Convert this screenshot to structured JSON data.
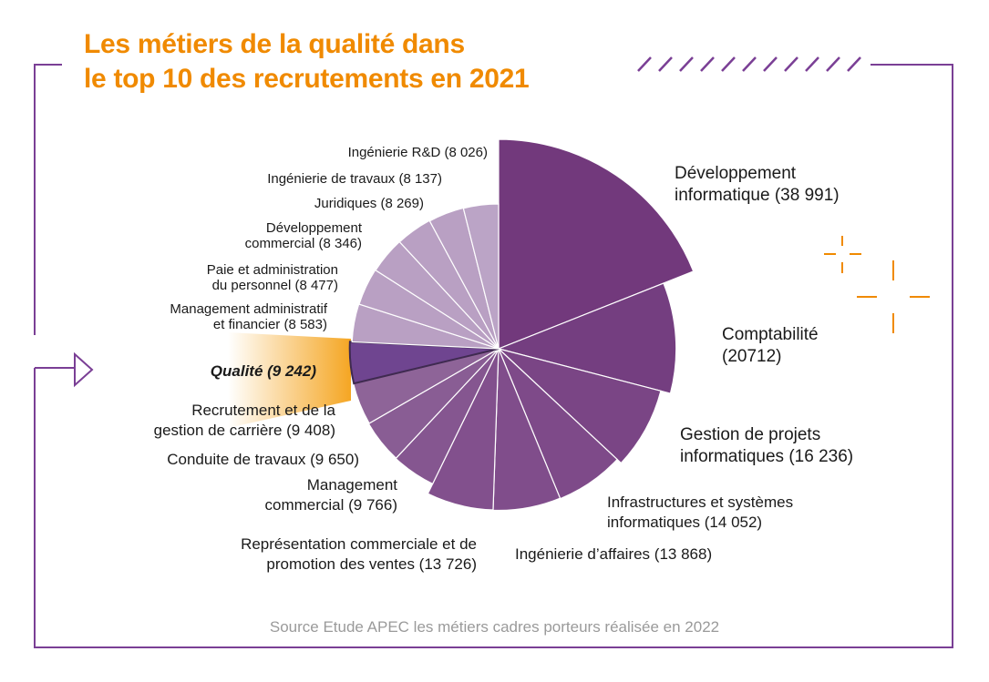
{
  "title_line1": "Les métiers de la qualité dans",
  "title_line2": "le top 10 des recrutements en 2021",
  "source": "Source Etude APEC les métiers cadres porteurs réalisée en 2022",
  "colors": {
    "accent": "#f08a00",
    "frame": "#7a3f95"
  },
  "chart_data": {
    "type": "polar-area",
    "title": "Les métiers de la qualité dans le top 10 des recrutements en 2021",
    "highlight": "Qualité",
    "series": [
      {
        "name": "Développement informatique",
        "value": 38991,
        "label": "Développement informatique (38 991)",
        "color": "#72397c"
      },
      {
        "name": "Comptabilité",
        "value": 20712,
        "label": "Comptabilité (20712)",
        "color": "#743e80"
      },
      {
        "name": "Gestion de projets informatiques",
        "value": 16236,
        "label": "Gestion de projets informatiques (16 236)",
        "color": "#7a4585"
      },
      {
        "name": "Infrastructures et systèmes informatiques",
        "value": 14052,
        "label": "Infrastructures et systèmes informatiques (14 052)",
        "color": "#7e4a89"
      },
      {
        "name": "Ingénierie d'affaires",
        "value": 13868,
        "label": "Ingénierie d’affaires (13 868)",
        "color": "#804d8b"
      },
      {
        "name": "Représentation commerciale et de promotion des ventes",
        "value": 13726,
        "label": "Représentation commerciale et de promotion des ventes (13 726)",
        "color": "#82508d"
      },
      {
        "name": "Management commercial",
        "value": 9766,
        "label": "Management commercial (9 766)",
        "color": "#855690"
      },
      {
        "name": "Conduite de travaux",
        "value": 9650,
        "label": "Conduite de travaux (9 650)",
        "color": "#895d94"
      },
      {
        "name": "Recrutement et de la gestion de carrière",
        "value": 9408,
        "label": "Recrutement et de la gestion de carrière (9 408)",
        "color": "#8e6498"
      },
      {
        "name": "Qualité",
        "value": 9242,
        "label": "Qualité (9 242)",
        "color": "#6f4590"
      },
      {
        "name": "Management administratif et financier",
        "value": 8583,
        "label": "Management administratif et financier (8 583)",
        "color": "#b9a0c3"
      },
      {
        "name": "Paie et administration du personnel",
        "value": 8477,
        "label": "Paie et administration du personnel (8 477)",
        "color": "#b9a0c3"
      },
      {
        "name": "Développement commercial",
        "value": 8346,
        "label": "Développement commercial (8 346)",
        "color": "#b9a0c3"
      },
      {
        "name": "Juridiques",
        "value": 8269,
        "label": "Juridiques (8 269)",
        "color": "#b9a0c3"
      },
      {
        "name": "Ingénierie de travaux",
        "value": 8137,
        "label": "Ingénierie de travaux (8 137)",
        "color": "#b9a0c3"
      },
      {
        "name": "Ingénierie R&D",
        "value": 8026,
        "label": "Ingénierie R&D (8 026)",
        "color": "#bba4c6"
      }
    ],
    "label_lines": [
      [
        "Développement",
        "informatique (38 991)"
      ],
      [
        "Comptabilité",
        "(20712)"
      ],
      [
        "Gestion de projets",
        "informatiques (16 236)"
      ],
      [
        "Infrastructures et systèmes",
        "informatiques (14 052)"
      ],
      [
        "Ingénierie d’affaires (13 868)"
      ],
      [
        "Représentation commerciale et de",
        "promotion des ventes (13 726)"
      ],
      [
        "Management",
        "commercial (9 766)"
      ],
      [
        "Conduite de travaux (9 650)"
      ],
      [
        "Recrutement et de la",
        "gestion de carrière (9 408)"
      ],
      [
        "Qualité  (9 242)"
      ],
      [
        "Management administratif",
        "et financier (8 583)"
      ],
      [
        "Paie et administration",
        "du personnel (8 477)"
      ],
      [
        "Développement",
        "commercial (8 346)"
      ],
      [
        "Juridiques (8 269)"
      ],
      [
        "Ingénierie de travaux (8 137)"
      ],
      [
        "Ingénierie R&D (8 026)"
      ]
    ]
  }
}
